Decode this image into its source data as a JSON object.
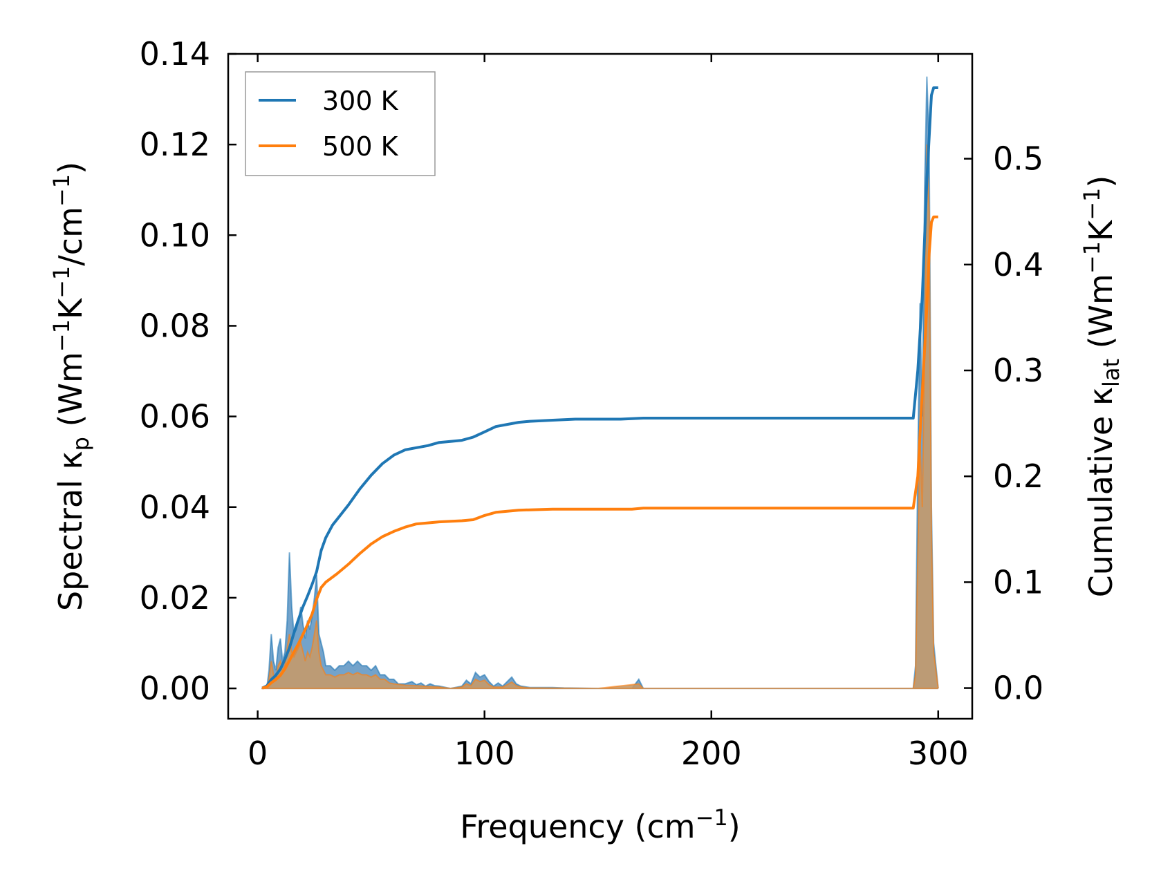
{
  "chart_data": {
    "type": "line",
    "title": "",
    "x_axis": {
      "label": "Frequency (cm⁻¹)",
      "label_text": "Frequency (cm",
      "label_sup": "−1",
      "label_close": ")",
      "ticks": [
        0,
        100,
        200,
        300
      ],
      "tick_labels": [
        "0",
        "100",
        "200",
        "300"
      ],
      "range": [
        -13,
        315
      ]
    },
    "y_axis_left": {
      "label": "Spectral κp (Wm⁻¹K⁻¹/cm⁻¹)",
      "label_parts": [
        {
          "t": "Spectral κ",
          "k": "n"
        },
        {
          "t": "p",
          "k": "sub"
        },
        {
          "t": " (Wm",
          "k": "n"
        },
        {
          "t": "−1",
          "k": "sup"
        },
        {
          "t": "K",
          "k": "n"
        },
        {
          "t": "−1",
          "k": "sup"
        },
        {
          "t": "/cm",
          "k": "n"
        },
        {
          "t": "−1",
          "k": "sup"
        },
        {
          "t": ")",
          "k": "n"
        }
      ],
      "ticks": [
        0.0,
        0.02,
        0.04,
        0.06,
        0.08,
        0.1,
        0.12,
        0.14
      ],
      "tick_labels": [
        "0.00",
        "0.02",
        "0.04",
        "0.06",
        "0.08",
        "0.10",
        "0.12",
        "0.14"
      ],
      "range": [
        -0.0067,
        0.14
      ]
    },
    "y_axis_right": {
      "label": "Cumulative κlat (Wm⁻¹K⁻¹)",
      "label_parts": [
        {
          "t": "Cumulative κ",
          "k": "n"
        },
        {
          "t": "lat",
          "k": "sub"
        },
        {
          "t": " (Wm",
          "k": "n"
        },
        {
          "t": "−1",
          "k": "sup"
        },
        {
          "t": "K",
          "k": "n"
        },
        {
          "t": "−1",
          "k": "sup"
        },
        {
          "t": ")",
          "k": "n"
        }
      ],
      "ticks": [
        0.0,
        0.1,
        0.2,
        0.3,
        0.4,
        0.5
      ],
      "tick_labels": [
        "0.0",
        "0.1",
        "0.2",
        "0.3",
        "0.4",
        "0.5"
      ],
      "range": [
        -0.029,
        0.599
      ]
    },
    "legend": {
      "placement": "upper-left",
      "entries": [
        "300 K",
        "500 K"
      ]
    },
    "grid": false,
    "colors": {
      "300 K": "#1f77b4",
      "500 K": "#ff7f0e",
      "fill_300": "#5b93c2",
      "fill_500": "#c49a6c"
    },
    "series": [
      {
        "name": "300 K",
        "kind": "cumulative",
        "axis": "right",
        "points": [
          [
            2,
            0.0
          ],
          [
            4,
            0.002
          ],
          [
            6,
            0.008
          ],
          [
            8,
            0.012
          ],
          [
            10,
            0.018
          ],
          [
            12,
            0.027
          ],
          [
            14,
            0.038
          ],
          [
            16,
            0.052
          ],
          [
            18,
            0.065
          ],
          [
            20,
            0.077
          ],
          [
            22,
            0.087
          ],
          [
            24,
            0.098
          ],
          [
            26,
            0.11
          ],
          [
            28,
            0.13
          ],
          [
            30,
            0.142
          ],
          [
            33,
            0.154
          ],
          [
            36,
            0.162
          ],
          [
            40,
            0.173
          ],
          [
            45,
            0.188
          ],
          [
            50,
            0.201
          ],
          [
            55,
            0.212
          ],
          [
            60,
            0.22
          ],
          [
            65,
            0.225
          ],
          [
            70,
            0.227
          ],
          [
            75,
            0.229
          ],
          [
            80,
            0.232
          ],
          [
            85,
            0.233
          ],
          [
            90,
            0.234
          ],
          [
            95,
            0.237
          ],
          [
            100,
            0.242
          ],
          [
            105,
            0.247
          ],
          [
            110,
            0.249
          ],
          [
            115,
            0.251
          ],
          [
            120,
            0.252
          ],
          [
            130,
            0.253
          ],
          [
            140,
            0.254
          ],
          [
            160,
            0.254
          ],
          [
            170,
            0.255
          ],
          [
            200,
            0.255
          ],
          [
            250,
            0.255
          ],
          [
            289,
            0.255
          ],
          [
            291,
            0.3
          ],
          [
            293,
            0.37
          ],
          [
            295,
            0.48
          ],
          [
            296,
            0.52
          ],
          [
            297,
            0.56
          ],
          [
            298,
            0.567
          ],
          [
            300,
            0.567
          ]
        ]
      },
      {
        "name": "500 K",
        "kind": "cumulative",
        "axis": "right",
        "points": [
          [
            2,
            0.0
          ],
          [
            4,
            0.001
          ],
          [
            6,
            0.005
          ],
          [
            8,
            0.008
          ],
          [
            10,
            0.012
          ],
          [
            12,
            0.018
          ],
          [
            14,
            0.026
          ],
          [
            16,
            0.034
          ],
          [
            18,
            0.042
          ],
          [
            20,
            0.051
          ],
          [
            22,
            0.06
          ],
          [
            24,
            0.07
          ],
          [
            26,
            0.084
          ],
          [
            28,
            0.095
          ],
          [
            30,
            0.1
          ],
          [
            35,
            0.108
          ],
          [
            40,
            0.117
          ],
          [
            45,
            0.127
          ],
          [
            50,
            0.136
          ],
          [
            55,
            0.143
          ],
          [
            60,
            0.148
          ],
          [
            65,
            0.152
          ],
          [
            70,
            0.155
          ],
          [
            80,
            0.157
          ],
          [
            90,
            0.158
          ],
          [
            95,
            0.159
          ],
          [
            100,
            0.163
          ],
          [
            105,
            0.166
          ],
          [
            110,
            0.167
          ],
          [
            115,
            0.168
          ],
          [
            130,
            0.169
          ],
          [
            165,
            0.169
          ],
          [
            170,
            0.17
          ],
          [
            200,
            0.17
          ],
          [
            250,
            0.17
          ],
          [
            289,
            0.17
          ],
          [
            291,
            0.2
          ],
          [
            293,
            0.28
          ],
          [
            295,
            0.36
          ],
          [
            296,
            0.41
          ],
          [
            297,
            0.44
          ],
          [
            298,
            0.445
          ],
          [
            300,
            0.445
          ]
        ]
      },
      {
        "name": "300 K",
        "kind": "spectral",
        "axis": "left",
        "points": [
          [
            2,
            0.0
          ],
          [
            4,
            0.0
          ],
          [
            5,
            0.004
          ],
          [
            6,
            0.012
          ],
          [
            7,
            0.006
          ],
          [
            8,
            0.004
          ],
          [
            9,
            0.009
          ],
          [
            10,
            0.011
          ],
          [
            11,
            0.006
          ],
          [
            12,
            0.008
          ],
          [
            13,
            0.015
          ],
          [
            14,
            0.03
          ],
          [
            15,
            0.018
          ],
          [
            16,
            0.012
          ],
          [
            17,
            0.013
          ],
          [
            18,
            0.015
          ],
          [
            19,
            0.018
          ],
          [
            20,
            0.014
          ],
          [
            21,
            0.011
          ],
          [
            22,
            0.015
          ],
          [
            23,
            0.013
          ],
          [
            24,
            0.016
          ],
          [
            25,
            0.02
          ],
          [
            26,
            0.025
          ],
          [
            27,
            0.012
          ],
          [
            28,
            0.01
          ],
          [
            29,
            0.008
          ],
          [
            30,
            0.005
          ],
          [
            32,
            0.005
          ],
          [
            34,
            0.004
          ],
          [
            36,
            0.005
          ],
          [
            38,
            0.005
          ],
          [
            40,
            0.006
          ],
          [
            42,
            0.005
          ],
          [
            44,
            0.006
          ],
          [
            46,
            0.005
          ],
          [
            48,
            0.005
          ],
          [
            50,
            0.004
          ],
          [
            52,
            0.005
          ],
          [
            54,
            0.003
          ],
          [
            56,
            0.003
          ],
          [
            58,
            0.002
          ],
          [
            60,
            0.002
          ],
          [
            62,
            0.001
          ],
          [
            65,
            0.001
          ],
          [
            68,
            0.0015
          ],
          [
            70,
            0.0008
          ],
          [
            72,
            0.0012
          ],
          [
            74,
            0.0005
          ],
          [
            76,
            0.001
          ],
          [
            78,
            0.0006
          ],
          [
            80,
            0.0005
          ],
          [
            85,
            0.0
          ],
          [
            90,
            0.0005
          ],
          [
            92,
            0.0018
          ],
          [
            94,
            0.001
          ],
          [
            96,
            0.0035
          ],
          [
            98,
            0.0025
          ],
          [
            100,
            0.003
          ],
          [
            102,
            0.0015
          ],
          [
            104,
            0.0005
          ],
          [
            106,
            0.0012
          ],
          [
            108,
            0.0005
          ],
          [
            110,
            0.0015
          ],
          [
            112,
            0.0025
          ],
          [
            114,
            0.001
          ],
          [
            116,
            0.0005
          ],
          [
            120,
            0.0002
          ],
          [
            130,
            0.0002
          ],
          [
            135,
            0.0001
          ],
          [
            150,
            0.0
          ],
          [
            165,
            0.0
          ],
          [
            168,
            0.002
          ],
          [
            170,
            0.0
          ],
          [
            200,
            0.0
          ],
          [
            289,
            0.0
          ],
          [
            290,
            0.005
          ],
          [
            291,
            0.05
          ],
          [
            292,
            0.085
          ],
          [
            293,
            0.06
          ],
          [
            294,
            0.11
          ],
          [
            295,
            0.135
          ],
          [
            296,
            0.12
          ],
          [
            297,
            0.04
          ],
          [
            298,
            0.01
          ],
          [
            300,
            0.0
          ]
        ]
      },
      {
        "name": "500 K",
        "kind": "spectral",
        "axis": "left",
        "points": [
          [
            2,
            0.0
          ],
          [
            4,
            0.0
          ],
          [
            5,
            0.002
          ],
          [
            6,
            0.006
          ],
          [
            7,
            0.003
          ],
          [
            8,
            0.002
          ],
          [
            9,
            0.005
          ],
          [
            10,
            0.006
          ],
          [
            11,
            0.004
          ],
          [
            12,
            0.005
          ],
          [
            13,
            0.009
          ],
          [
            14,
            0.012
          ],
          [
            15,
            0.008
          ],
          [
            16,
            0.007
          ],
          [
            17,
            0.008
          ],
          [
            18,
            0.009
          ],
          [
            19,
            0.01
          ],
          [
            20,
            0.008
          ],
          [
            21,
            0.006
          ],
          [
            22,
            0.008
          ],
          [
            23,
            0.007
          ],
          [
            24,
            0.009
          ],
          [
            25,
            0.012
          ],
          [
            26,
            0.015
          ],
          [
            27,
            0.008
          ],
          [
            28,
            0.005
          ],
          [
            29,
            0.004
          ],
          [
            30,
            0.003
          ],
          [
            32,
            0.003
          ],
          [
            34,
            0.0025
          ],
          [
            36,
            0.003
          ],
          [
            38,
            0.003
          ],
          [
            40,
            0.0035
          ],
          [
            42,
            0.003
          ],
          [
            44,
            0.0035
          ],
          [
            46,
            0.003
          ],
          [
            48,
            0.003
          ],
          [
            50,
            0.0025
          ],
          [
            52,
            0.003
          ],
          [
            54,
            0.002
          ],
          [
            56,
            0.002
          ],
          [
            58,
            0.0012
          ],
          [
            60,
            0.001
          ],
          [
            65,
            0.0007
          ],
          [
            70,
            0.0006
          ],
          [
            75,
            0.0004
          ],
          [
            80,
            0.0003
          ],
          [
            85,
            0.0
          ],
          [
            90,
            0.0003
          ],
          [
            92,
            0.001
          ],
          [
            94,
            0.0006
          ],
          [
            96,
            0.002
          ],
          [
            98,
            0.0015
          ],
          [
            100,
            0.0018
          ],
          [
            102,
            0.0008
          ],
          [
            104,
            0.0003
          ],
          [
            108,
            0.0003
          ],
          [
            110,
            0.0008
          ],
          [
            112,
            0.0014
          ],
          [
            114,
            0.0006
          ],
          [
            116,
            0.0003
          ],
          [
            120,
            0.0001
          ],
          [
            150,
            0.0
          ],
          [
            168,
            0.001
          ],
          [
            170,
            0.0
          ],
          [
            200,
            0.0
          ],
          [
            289,
            0.0
          ],
          [
            290,
            0.003
          ],
          [
            291,
            0.03
          ],
          [
            292,
            0.055
          ],
          [
            293,
            0.04
          ],
          [
            294,
            0.075
          ],
          [
            295,
            0.12
          ],
          [
            296,
            0.105
          ],
          [
            297,
            0.035
          ],
          [
            298,
            0.008
          ],
          [
            300,
            0.0
          ]
        ]
      }
    ]
  }
}
